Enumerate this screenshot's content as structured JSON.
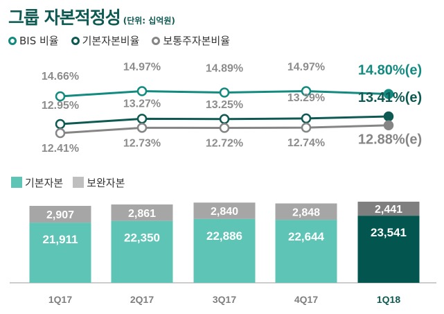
{
  "title": "그룹 자본적정성",
  "unit": "(단위: 십억원)",
  "chart_data": [
    {
      "type": "line",
      "categories": [
        "1Q17",
        "2Q17",
        "3Q17",
        "4Q17",
        "1Q18"
      ],
      "series": [
        {
          "name": "BIS 비율",
          "values": [
            14.66,
            14.97,
            14.89,
            14.97,
            14.8
          ],
          "labels": [
            "14.66%",
            "14.97%",
            "14.89%",
            "14.97%",
            "14.80%(e)"
          ],
          "color": "#138a80"
        },
        {
          "name": "기본자본비율",
          "values": [
            12.95,
            13.27,
            13.25,
            13.29,
            13.41
          ],
          "labels": [
            "12.95%",
            "13.27%",
            "13.25%",
            "13.29%",
            "13.41%(e)"
          ],
          "color": "#0e5a52"
        },
        {
          "name": "보통주자본비율",
          "values": [
            12.41,
            12.73,
            12.72,
            12.74,
            12.88
          ],
          "labels": [
            "12.41%",
            "12.73%",
            "12.72%",
            "12.74%",
            "12.88%(e)"
          ],
          "color": "#858585"
        }
      ],
      "legend_position": "top-left",
      "grid": false
    },
    {
      "type": "bar",
      "stacked": true,
      "categories": [
        "1Q17",
        "2Q17",
        "3Q17",
        "4Q17",
        "1Q18"
      ],
      "series": [
        {
          "name": "기본자본",
          "values": [
            21911,
            22350,
            22886,
            22644,
            23541
          ],
          "labels": [
            "21,911",
            "22,350",
            "22,886",
            "22,644",
            "23,541"
          ],
          "color": "#5ec4b6",
          "highlight_color": "#02564f"
        },
        {
          "name": "보완자본",
          "values": [
            2907,
            2861,
            2840,
            2848,
            2441
          ],
          "labels": [
            "2,907",
            "2,861",
            "2,840",
            "2,848",
            "2,441"
          ],
          "color": "#a6a6a6",
          "highlight_color": "#7f7f7f"
        }
      ],
      "legend_position": "top-left",
      "grid": false
    }
  ]
}
